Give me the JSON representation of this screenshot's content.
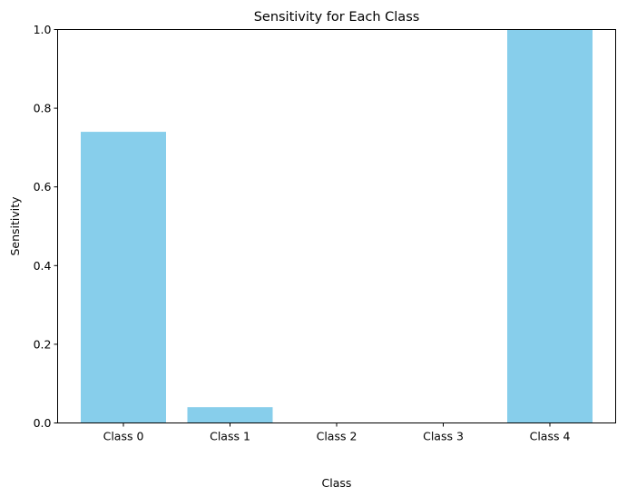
{
  "chart_data": {
    "type": "bar",
    "title": "Sensitivity for Each Class",
    "xlabel": "Class",
    "ylabel": "Sensitivity",
    "categories": [
      "Class 0",
      "Class 1",
      "Class 2",
      "Class 3",
      "Class 4"
    ],
    "values": [
      0.74,
      0.04,
      0.0,
      0.0,
      1.0
    ],
    "ylim": [
      0,
      1.0
    ],
    "yticks": [
      "0.0",
      "0.2",
      "0.4",
      "0.6",
      "0.8",
      "1.0"
    ],
    "bar_color": "#87ceeb",
    "grid": false,
    "legend": "none"
  }
}
